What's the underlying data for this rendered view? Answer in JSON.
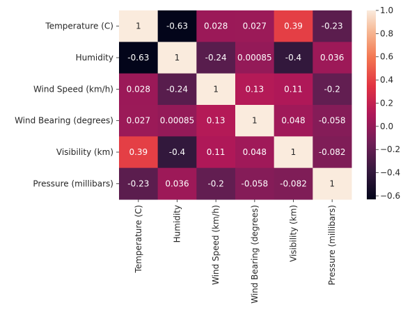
{
  "chart_data": {
    "type": "heatmap",
    "title": "",
    "xlabel": "",
    "ylabel": "",
    "labels": [
      "Temperature (C)",
      "Humidity",
      "Wind Speed (km/h)",
      "Wind Bearing (degrees)",
      "Visibility (km)",
      "Pressure (millibars)"
    ],
    "values": [
      [
        1,
        -0.63,
        0.028,
        0.027,
        0.39,
        -0.23
      ],
      [
        -0.63,
        1,
        -0.24,
        0.00085,
        -0.4,
        0.036
      ],
      [
        0.028,
        -0.24,
        1,
        0.13,
        0.11,
        -0.2
      ],
      [
        0.027,
        0.00085,
        0.13,
        1,
        0.048,
        -0.058
      ],
      [
        0.39,
        -0.4,
        0.11,
        0.048,
        1,
        -0.082
      ],
      [
        -0.23,
        0.036,
        -0.2,
        -0.058,
        -0.082,
        1
      ]
    ],
    "annotations": [
      [
        "1",
        "-0.63",
        "0.028",
        "0.027",
        "0.39",
        "-0.23"
      ],
      [
        "-0.63",
        "1",
        "-0.24",
        "0.00085",
        "-0.4",
        "0.036"
      ],
      [
        "0.028",
        "-0.24",
        "1",
        "0.13",
        "0.11",
        "-0.2"
      ],
      [
        "0.027",
        "0.00085",
        "0.13",
        "1",
        "0.048",
        "-0.058"
      ],
      [
        "0.39",
        "-0.4",
        "0.11",
        "0.048",
        "1",
        "-0.082"
      ],
      [
        "-0.23",
        "0.036",
        "-0.2",
        "-0.058",
        "-0.082",
        "1"
      ]
    ],
    "colormap": "rocket",
    "color_range": [
      -0.63,
      1
    ],
    "colorbar_ticks": [
      1.0,
      0.8,
      0.6,
      0.4,
      0.2,
      0.0,
      -0.2,
      -0.4,
      -0.6
    ],
    "colorbar_tick_labels": [
      "1.0",
      "0.8",
      "0.6",
      "0.4",
      "0.2",
      "0.0",
      "−0.2",
      "−0.4",
      "−0.6"
    ],
    "colorbar_position": "right",
    "grid": false
  }
}
